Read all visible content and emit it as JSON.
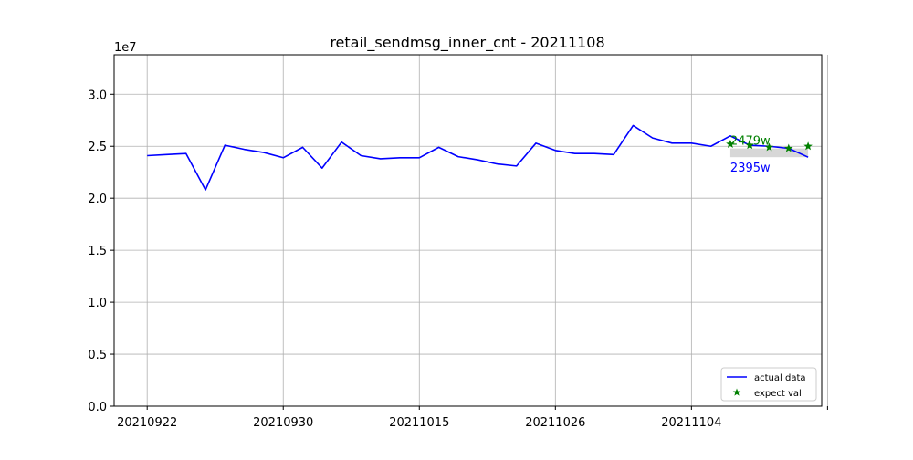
{
  "chart_data": {
    "type": "line",
    "title": "retail_sendmsg_inner_cnt - 20211108",
    "xlabel": "",
    "ylabel": "",
    "y_offset_label": "1e7",
    "ylim": [
      0,
      3.38
    ],
    "xlim": [
      -1.7,
      34.7
    ],
    "grid": true,
    "legend_position": "lower-right",
    "x_ticks": [
      {
        "x": 0,
        "label": "20210922"
      },
      {
        "x": 7,
        "label": "20210930"
      },
      {
        "x": 14,
        "label": "20211015"
      },
      {
        "x": 21,
        "label": "20211026"
      },
      {
        "x": 28,
        "label": "20211104"
      },
      {
        "x": 35,
        "label": ""
      }
    ],
    "y_ticks": [
      {
        "y": 0.0,
        "label": "0.0"
      },
      {
        "y": 0.5,
        "label": "0.5"
      },
      {
        "y": 1.0,
        "label": "1.0"
      },
      {
        "y": 1.5,
        "label": "1.5"
      },
      {
        "y": 2.0,
        "label": "2.0"
      },
      {
        "y": 2.5,
        "label": "2.5"
      },
      {
        "y": 3.0,
        "label": "3.0"
      }
    ],
    "series": [
      {
        "name": "actual data",
        "style": "line",
        "color": "#0000ff",
        "x": [
          0,
          1,
          2,
          3,
          4,
          5,
          6,
          7,
          8,
          9,
          10,
          11,
          12,
          13,
          14,
          15,
          16,
          17,
          18,
          19,
          20,
          21,
          22,
          23,
          24,
          25,
          26,
          27,
          28,
          29,
          30,
          31,
          32,
          33,
          34
        ],
        "y": [
          2.41,
          2.42,
          2.43,
          2.08,
          2.51,
          2.47,
          2.44,
          2.39,
          2.49,
          2.29,
          2.54,
          2.41,
          2.38,
          2.39,
          2.39,
          2.49,
          2.4,
          2.37,
          2.33,
          2.31,
          2.53,
          2.46,
          2.43,
          2.43,
          2.42,
          2.7,
          2.58,
          2.53,
          2.53,
          2.5,
          2.6,
          2.51,
          2.5,
          2.48,
          2.395
        ]
      },
      {
        "name": "expect val",
        "style": "marker-star",
        "color": "#008000",
        "x": [
          30,
          31,
          32,
          33,
          34
        ],
        "y": [
          2.52,
          2.51,
          2.49,
          2.48,
          2.5
        ]
      }
    ],
    "band": {
      "x0": 30,
      "x1": 34,
      "y0": 2.395,
      "y1": 2.479,
      "color": "#d3d3d3"
    },
    "annotations": [
      {
        "text": "2479w",
        "x": 30,
        "y": 2.479,
        "color": "#008000",
        "anchor": "above"
      },
      {
        "text": "2395w",
        "x": 30,
        "y": 2.395,
        "color": "#0000ff",
        "anchor": "below"
      }
    ]
  }
}
